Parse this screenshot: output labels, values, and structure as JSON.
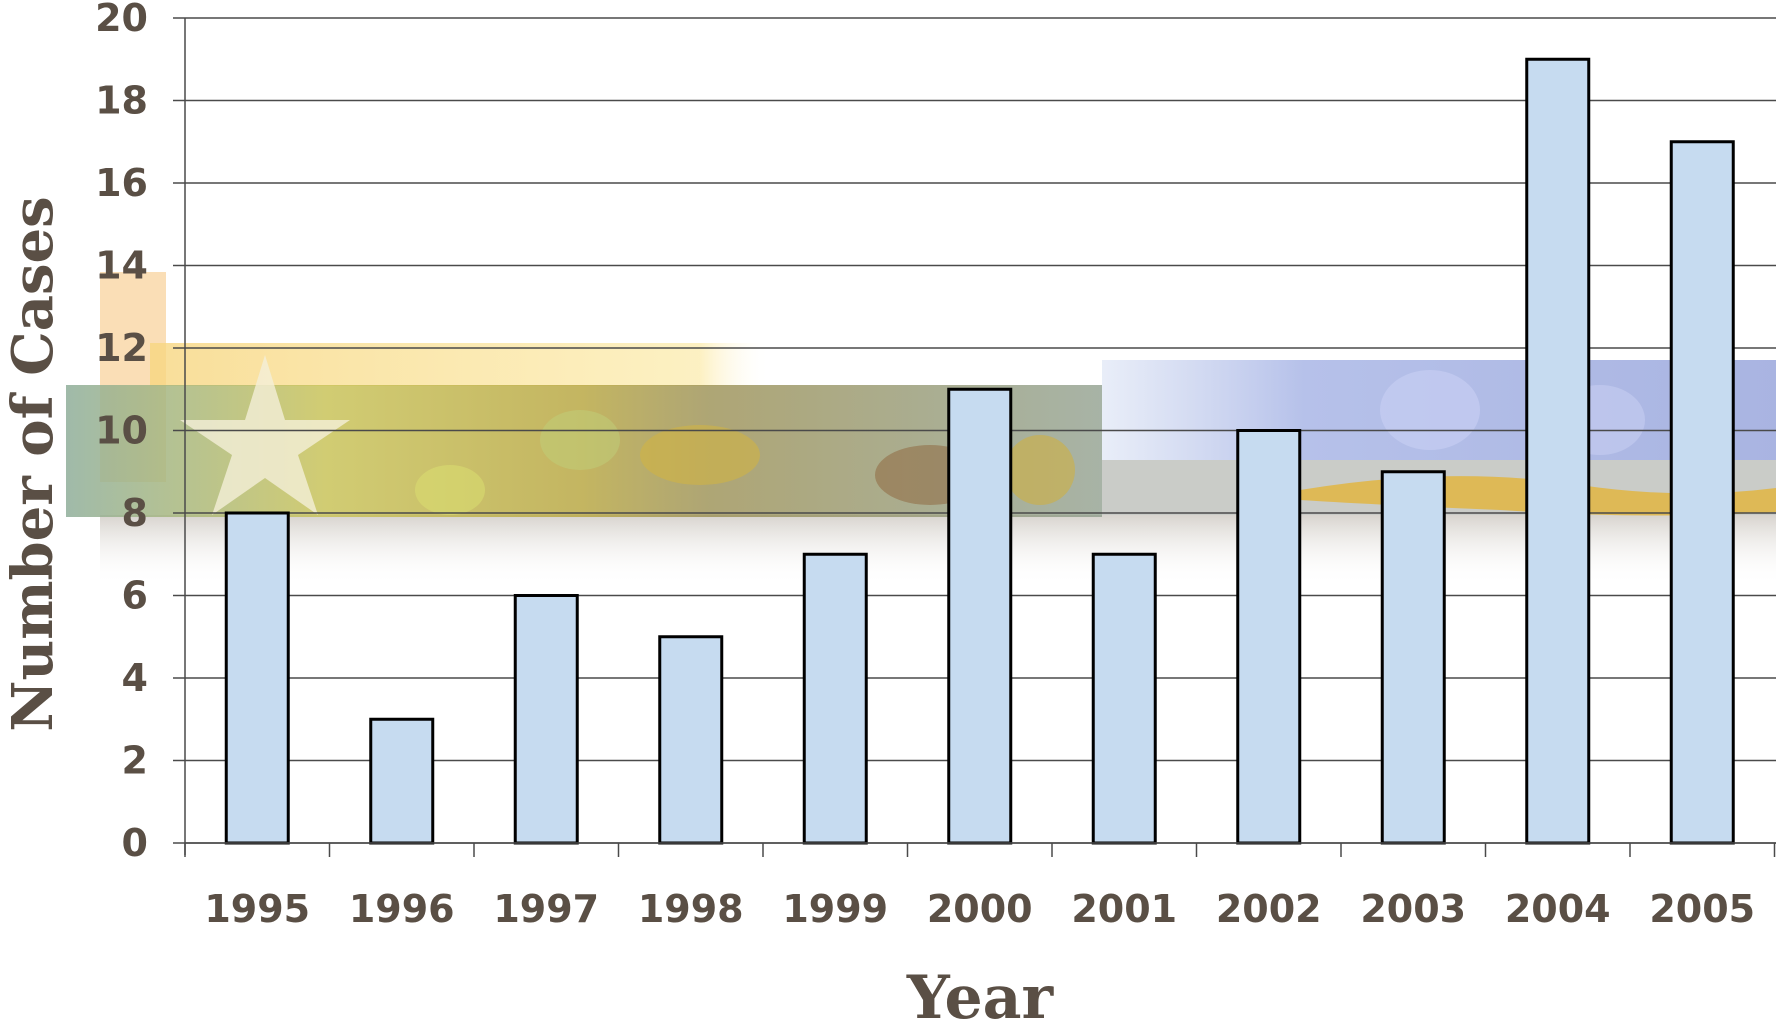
{
  "chart_data": {
    "type": "bar",
    "categories": [
      "1995",
      "1996",
      "1997",
      "1998",
      "1999",
      "2000",
      "2001",
      "2002",
      "2003",
      "2004",
      "2005"
    ],
    "values": [
      8,
      3,
      6,
      5,
      7,
      11,
      7,
      10,
      9,
      19,
      17
    ],
    "xlabel": "Year",
    "ylabel": "Number of Cases",
    "ylim": [
      0,
      20
    ],
    "yticks": [
      "0",
      "2",
      "4",
      "6",
      "8",
      "10",
      "12",
      "14",
      "16",
      "18",
      "20"
    ],
    "grid": true,
    "bar_color": "#c6dbf0",
    "bar_edge_color": "#000000",
    "text_color": "#5a4f45",
    "background_decoration": "autumn-leaves-and-blue-flowers-banner"
  }
}
